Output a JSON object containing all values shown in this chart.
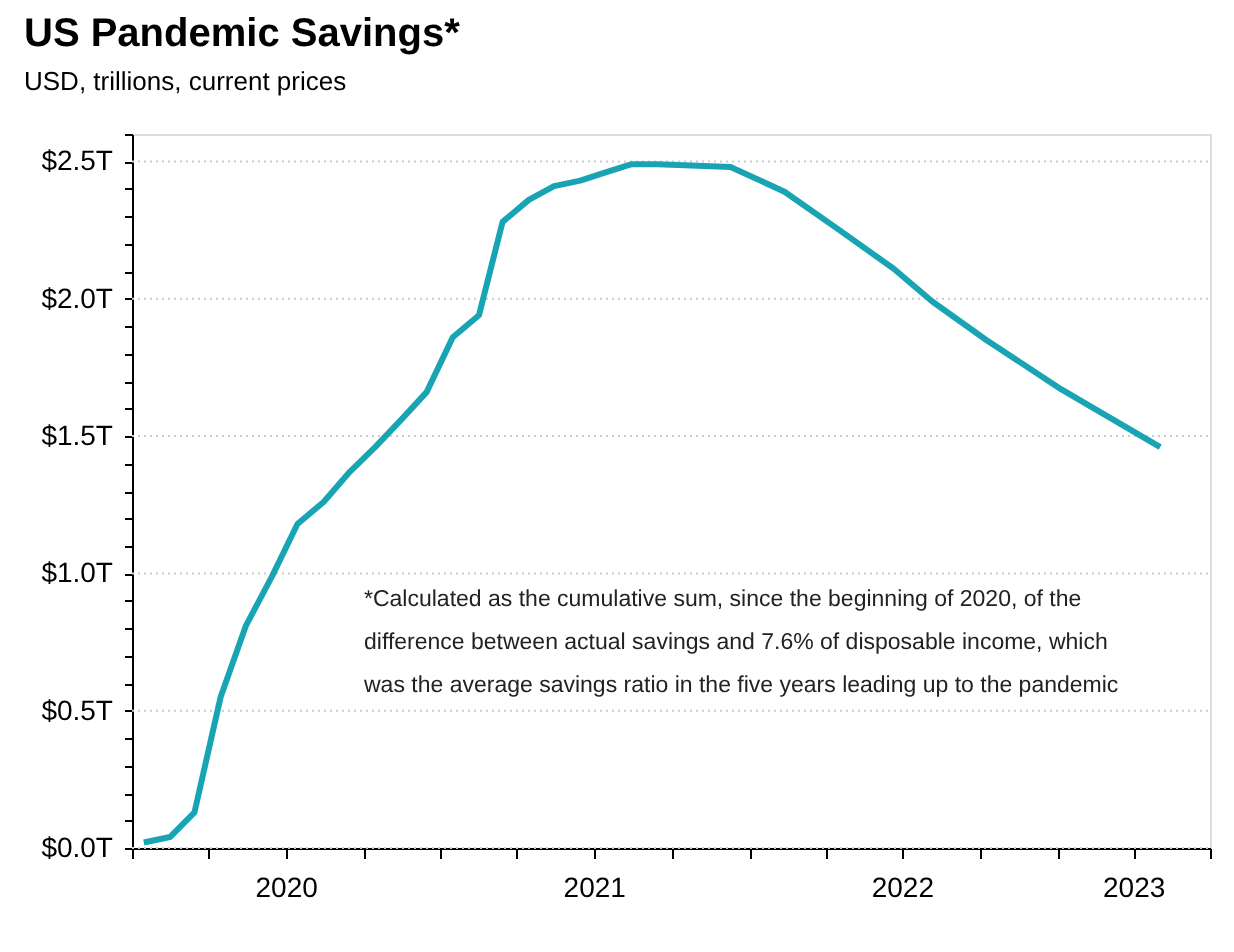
{
  "chart_data": {
    "type": "line",
    "title": "US Pandemic Savings*",
    "subtitle": "USD, trillions, current prices",
    "x": [
      "2020-01-15",
      "2020-02-15",
      "2020-03-15",
      "2020-04-15",
      "2020-05-15",
      "2020-06-15",
      "2020-07-15",
      "2020-08-15",
      "2020-09-15",
      "2020-10-15",
      "2020-11-15",
      "2020-12-15",
      "2021-01-15",
      "2021-02-15",
      "2021-03-15",
      "2021-04-15",
      "2021-05-15",
      "2021-06-15",
      "2021-07-15",
      "2021-08-15",
      "2021-09-15",
      "2021-12-10",
      "2022-02-12",
      "2022-04-18",
      "2022-06-21",
      "2022-08-06",
      "2022-10-09",
      "2023-01-06",
      "2023-05-03"
    ],
    "series": [
      {
        "color": "#19a4b4",
        "values": [
          0.02,
          0.04,
          0.13,
          0.55,
          0.81,
          0.99,
          1.18,
          1.26,
          1.37,
          1.46,
          1.56,
          1.66,
          1.86,
          1.94,
          2.28,
          2.36,
          2.41,
          2.43,
          2.46,
          2.49,
          2.49,
          2.48,
          2.39,
          2.25,
          2.11,
          1.99,
          1.85,
          1.67,
          1.46
        ]
      }
    ],
    "xlim": [
      "2020-01-01",
      "2023-07-01"
    ],
    "xticks": [
      {
        "value": "2020-01-01",
        "label": null
      },
      {
        "value": "2020-04-01",
        "label": null
      },
      {
        "value": "2020-07-01",
        "label": "2020"
      },
      {
        "value": "2020-10-01",
        "label": null
      },
      {
        "value": "2021-01-01",
        "label": null
      },
      {
        "value": "2021-04-01",
        "label": null
      },
      {
        "value": "2021-07-01",
        "label": "2021"
      },
      {
        "value": "2021-10-01",
        "label": null
      },
      {
        "value": "2022-01-01",
        "label": null
      },
      {
        "value": "2022-04-01",
        "label": null
      },
      {
        "value": "2022-07-01",
        "label": "2022"
      },
      {
        "value": "2022-10-01",
        "label": null
      },
      {
        "value": "2023-01-01",
        "label": null
      },
      {
        "value": "2023-04-01",
        "label": "2023"
      },
      {
        "value": "2023-07-01",
        "label": null
      }
    ],
    "ylim": [
      0,
      2.6
    ],
    "yticks": [
      {
        "value": 0,
        "label": "$0.0T"
      },
      {
        "value": 0.1,
        "label": null
      },
      {
        "value": 0.2,
        "label": null
      },
      {
        "value": 0.3,
        "label": null
      },
      {
        "value": 0.4,
        "label": null
      },
      {
        "value": 0.5,
        "label": "$0.5T"
      },
      {
        "value": 0.6,
        "label": null
      },
      {
        "value": 0.7,
        "label": null
      },
      {
        "value": 0.8,
        "label": null
      },
      {
        "value": 0.9,
        "label": null
      },
      {
        "value": 1.0,
        "label": "$1.0T"
      },
      {
        "value": 1.1,
        "label": null
      },
      {
        "value": 1.2,
        "label": null
      },
      {
        "value": 1.3,
        "label": null
      },
      {
        "value": 1.4,
        "label": null
      },
      {
        "value": 1.5,
        "label": "$1.5T"
      },
      {
        "value": 1.6,
        "label": null
      },
      {
        "value": 1.7,
        "label": null
      },
      {
        "value": 1.8,
        "label": null
      },
      {
        "value": 1.9,
        "label": null
      },
      {
        "value": 2.0,
        "label": "$2.0T"
      },
      {
        "value": 2.1,
        "label": null
      },
      {
        "value": 2.2,
        "label": null
      },
      {
        "value": 2.3,
        "label": null
      },
      {
        "value": 2.4,
        "label": null
      },
      {
        "value": 2.5,
        "label": "$2.5T"
      },
      {
        "value": 2.6,
        "label": null
      }
    ],
    "grid": "y",
    "marker": "none",
    "line_style": "solid",
    "annotations": [
      "*Calculated as the cumulative sum, since the beginning of 2020, of the",
      "difference between actual savings and 7.6% of disposable income, which",
      "was the average savings ratio in the five years leading up to the pandemic"
    ]
  }
}
